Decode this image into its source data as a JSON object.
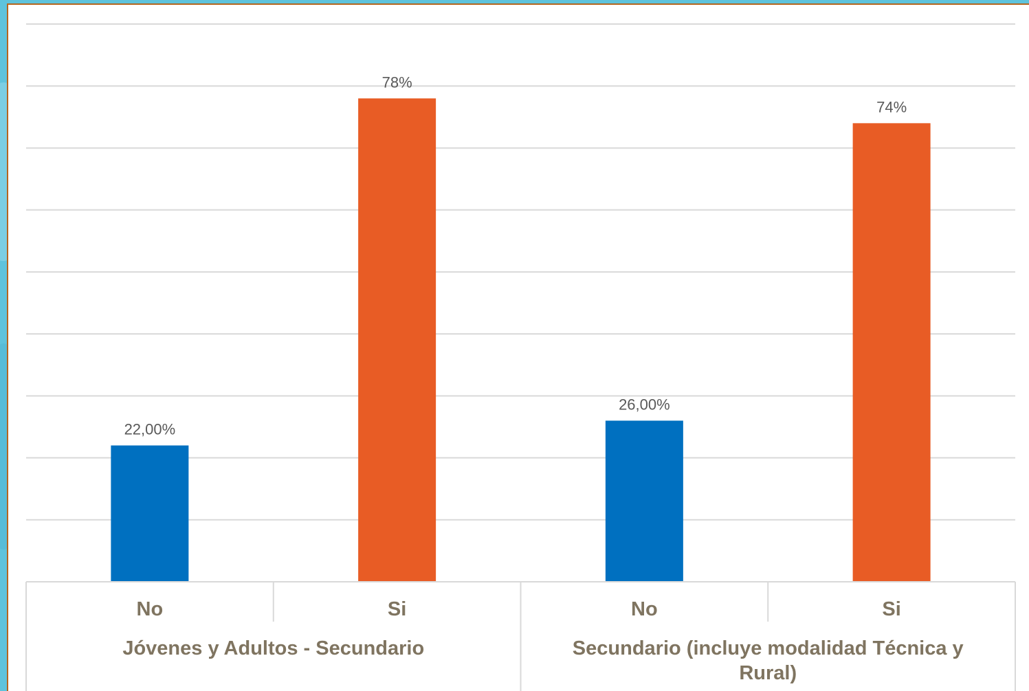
{
  "chart_data": {
    "type": "bar",
    "title": "",
    "xlabel": "",
    "ylabel": "",
    "ylim": [
      0,
      90
    ],
    "grid": true,
    "legend": "none",
    "bars": [
      {
        "group": "Jóvenes y Adultos - Secundario",
        "category": "No",
        "value": 22,
        "label": "22,00%",
        "color": "#0070c0"
      },
      {
        "group": "Jóvenes y Adultos - Secundario",
        "category": "Si",
        "value": 78,
        "label": "78%",
        "color": "#e85c25"
      },
      {
        "group": "Secundario (incluye modalidad Técnica y Rural)",
        "category": "No",
        "value": 26,
        "label": "26,00%",
        "color": "#0070c0"
      },
      {
        "group": "Secundario (incluye modalidad Técnica y Rural)",
        "category": "Si",
        "value": 74,
        "label": "74%",
        "color": "#e85c25"
      }
    ],
    "groups": [
      {
        "lines": [
          "Jóvenes y Adultos - Secundario"
        ]
      },
      {
        "lines": [
          "Secundario (incluye modalidad Técnica y",
          "Rural)"
        ]
      }
    ]
  },
  "colors": {
    "no": "#0070c0",
    "si": "#e85c25",
    "grid": "#d9d9d9",
    "text": "#7f7460"
  }
}
